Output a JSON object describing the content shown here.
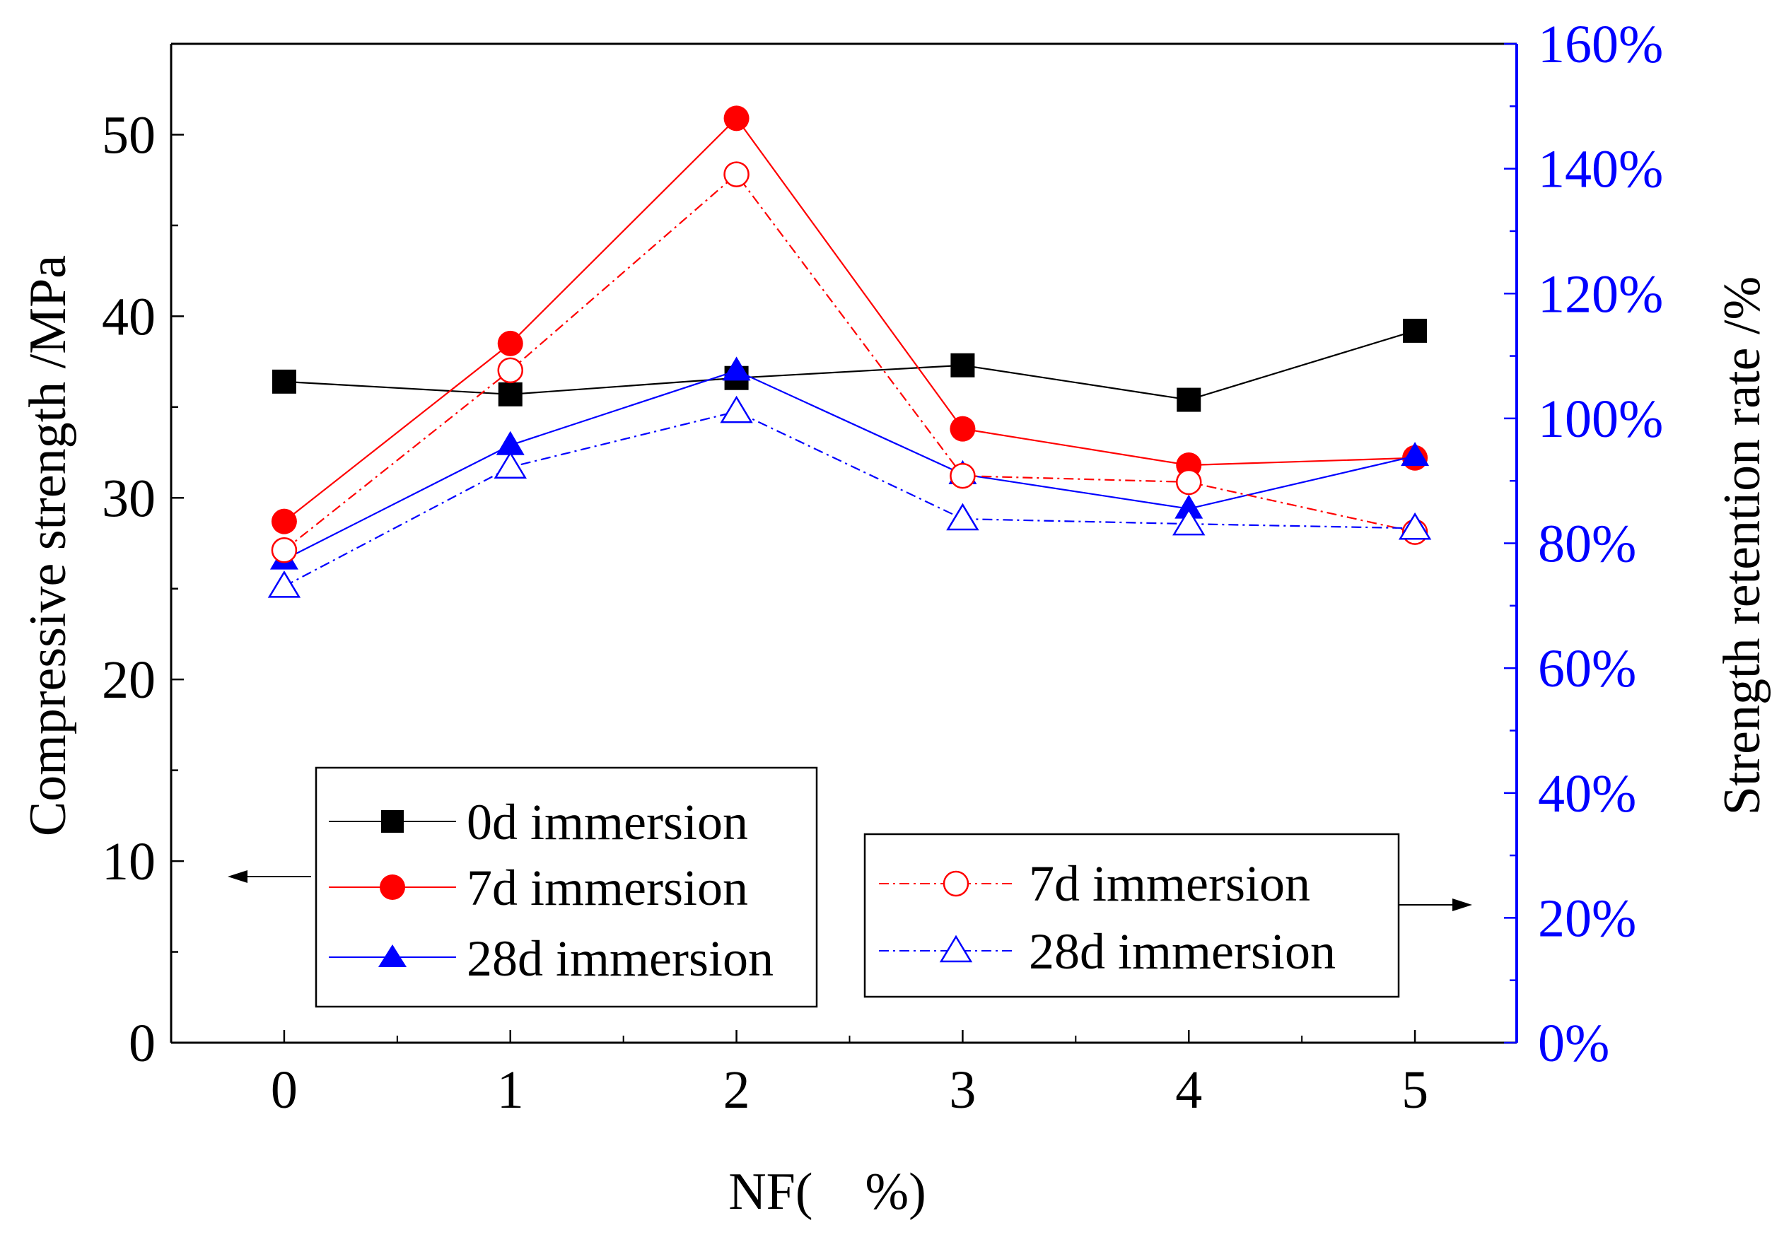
{
  "chart_data": {
    "type": "line",
    "x": [
      0,
      1,
      2,
      3,
      4,
      5
    ],
    "xlabel": "NF(　%)",
    "ylabel_left": "Compressive strength /MPa",
    "ylabel_right": "Strength retention rate /%",
    "xlim": [
      -0.5,
      5.45
    ],
    "ylim_left": [
      0,
      55
    ],
    "ylim_right": [
      0,
      160
    ],
    "x_ticks": [
      "0",
      "1",
      "2",
      "3",
      "4",
      "5"
    ],
    "y_ticks_left": [
      "0",
      "10",
      "20",
      "30",
      "40",
      "50"
    ],
    "y_ticks_right": [
      "0%",
      "20%",
      "40%",
      "60%",
      "80%",
      "100%",
      "120%",
      "140%",
      "160%"
    ],
    "right_axis_color": "#0000ff",
    "series": [
      {
        "name": "0d immersion",
        "axis": "left",
        "marker": "square-filled",
        "line": "solid",
        "color": "#000000",
        "values": [
          36.4,
          35.7,
          36.6,
          37.3,
          35.4,
          39.2
        ]
      },
      {
        "name": "7d immersion",
        "axis": "left",
        "marker": "circle-filled",
        "line": "solid",
        "color": "#ff0000",
        "values": [
          28.7,
          38.5,
          50.9,
          33.8,
          31.8,
          32.2
        ]
      },
      {
        "name": "28d immersion",
        "axis": "left",
        "marker": "triangle-filled",
        "line": "solid",
        "color": "#0000ff",
        "values": [
          26.6,
          32.9,
          37.0,
          31.3,
          29.4,
          32.3
        ]
      },
      {
        "name": "7d immersion",
        "axis": "right",
        "marker": "circle-open",
        "line": "dashdot",
        "color": "#ff0000",
        "values": [
          78.9,
          107.7,
          139.1,
          90.8,
          89.8,
          81.8
        ]
      },
      {
        "name": "28d immersion",
        "axis": "right",
        "marker": "triangle-open",
        "line": "dashdot",
        "color": "#0000ff",
        "values": [
          73.1,
          92.2,
          101.1,
          83.9,
          83.1,
          82.4
        ]
      }
    ],
    "legend_left": [
      "0d immersion",
      "7d immersion",
      "28d immersion"
    ],
    "legend_right": [
      "7d immersion",
      "28d immersion"
    ]
  }
}
